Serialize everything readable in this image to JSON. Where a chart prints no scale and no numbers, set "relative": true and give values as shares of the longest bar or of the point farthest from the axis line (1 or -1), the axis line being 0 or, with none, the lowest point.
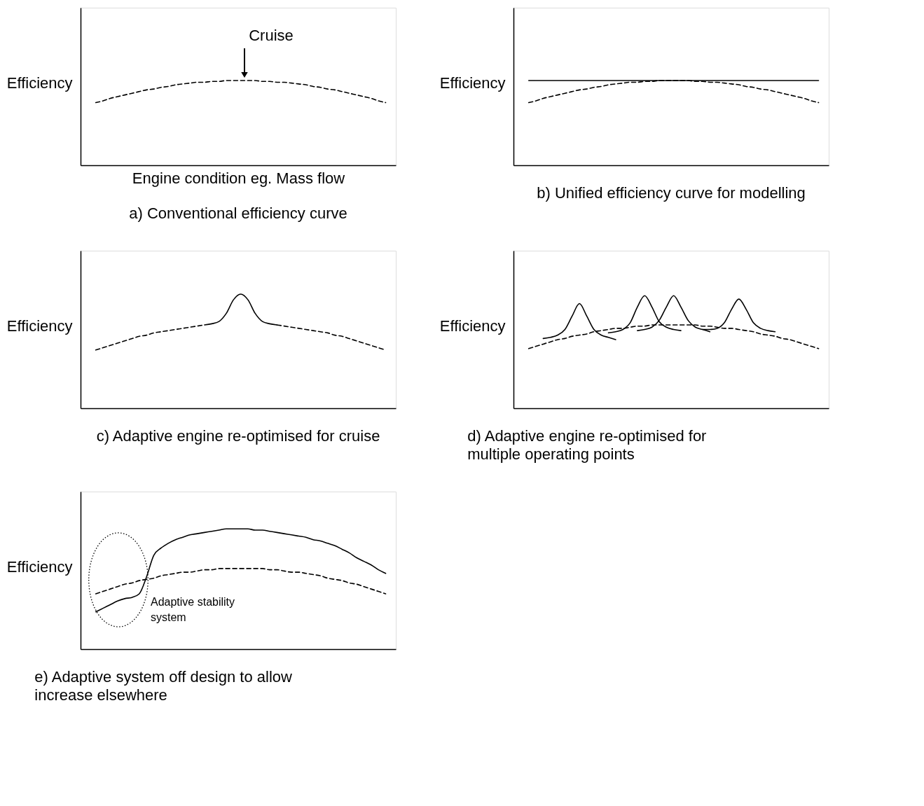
{
  "chart_data": [
    {
      "type": "line",
      "relative": true,
      "tick_labels": false,
      "title": "a) Conventional efficiency curve",
      "xlabel": "Engine condition eg. Mass flow",
      "ylabel": "Efficiency",
      "annotations": [
        "Cruise"
      ],
      "categories": [
        null,
        null,
        null,
        null,
        null,
        null,
        null,
        null,
        null,
        null,
        null,
        null,
        null,
        null,
        null,
        null,
        null,
        null,
        null,
        null,
        null,
        null,
        null,
        null,
        null,
        null,
        null,
        null,
        null,
        null,
        null,
        null,
        null,
        null,
        null,
        null,
        null,
        null,
        null,
        null,
        null
      ],
      "series": [
        {
          "color": "#000000",
          "line_style": "dashed",
          "values": [
            0.74,
            0.76,
            0.79,
            0.81,
            0.83,
            0.85,
            0.87,
            0.89,
            0.9,
            0.92,
            0.93,
            0.95,
            0.96,
            0.97,
            0.98,
            0.98,
            0.99,
            0.99,
            1,
            1,
            1,
            1,
            1,
            0.99,
            0.99,
            0.98,
            0.98,
            0.97,
            0.96,
            0.95,
            0.93,
            0.92,
            0.9,
            0.89,
            0.87,
            0.85,
            0.83,
            0.81,
            0.79,
            0.76,
            0.74
          ]
        }
      ]
    },
    {
      "type": "line",
      "relative": true,
      "tick_labels": false,
      "title": "b) Unified efficiency curve for modelling",
      "ylabel": "Efficiency",
      "categories": [
        null,
        null,
        null,
        null,
        null,
        null,
        null,
        null,
        null,
        null,
        null,
        null,
        null,
        null,
        null,
        null,
        null,
        null,
        null,
        null,
        null,
        null,
        null,
        null,
        null,
        null,
        null,
        null,
        null,
        null,
        null,
        null,
        null,
        null,
        null,
        null,
        null,
        null,
        null,
        null,
        null
      ],
      "series": [
        {
          "color": "#000000",
          "line_style": "dashed",
          "values": [
            0.74,
            0.76,
            0.79,
            0.81,
            0.83,
            0.85,
            0.87,
            0.89,
            0.9,
            0.92,
            0.93,
            0.95,
            0.96,
            0.97,
            0.98,
            0.98,
            0.99,
            0.99,
            1,
            1,
            1,
            1,
            1,
            0.99,
            0.99,
            0.98,
            0.98,
            0.97,
            0.96,
            0.95,
            0.93,
            0.92,
            0.9,
            0.89,
            0.87,
            0.85,
            0.83,
            0.81,
            0.79,
            0.76,
            0.74
          ]
        },
        {
          "color": "#000000",
          "line_style": "solid",
          "values": [
            1,
            1,
            1,
            1,
            1,
            1,
            1,
            1,
            1,
            1,
            1,
            1,
            1,
            1,
            1,
            1,
            1,
            1,
            1,
            1,
            1,
            1,
            1,
            1,
            1,
            1,
            1,
            1,
            1,
            1,
            1,
            1,
            1,
            1,
            1,
            1,
            1,
            1,
            1,
            1,
            1
          ]
        }
      ]
    },
    {
      "type": "line",
      "relative": true,
      "tick_labels": false,
      "title": "c) Adaptive engine re-optimised for cruise",
      "ylabel": "Efficiency",
      "categories": [
        null,
        null,
        null,
        null,
        null,
        null,
        null,
        null,
        null,
        null,
        null,
        null,
        null,
        null,
        null,
        null,
        null,
        null,
        null,
        null,
        null,
        null,
        null,
        null,
        null,
        null,
        null,
        null,
        null,
        null,
        null,
        null,
        null,
        null,
        null,
        null,
        null,
        null,
        null,
        null,
        null
      ],
      "series": [
        {
          "color": "#000000",
          "line_style": "dashed",
          "values": [
            0.51,
            0.53,
            0.55,
            0.57,
            0.59,
            0.61,
            0.63,
            0.64,
            0.66,
            0.67,
            0.68,
            0.69,
            0.7,
            0.71,
            0.72,
            0.73,
            null,
            null,
            null,
            null,
            null,
            null,
            null,
            null,
            null,
            0.73,
            0.72,
            0.71,
            0.7,
            0.69,
            0.68,
            0.67,
            0.66,
            0.64,
            0.63,
            0.61,
            0.59,
            0.57,
            0.55,
            0.53,
            0.51
          ]
        },
        {
          "color": "#000000",
          "line_style": "solid",
          "values": [
            null,
            null,
            null,
            null,
            null,
            null,
            null,
            null,
            null,
            null,
            null,
            null,
            null,
            null,
            null,
            0.73,
            0.74,
            0.76,
            0.83,
            0.95,
            1,
            0.95,
            0.83,
            0.76,
            0.74,
            0.73,
            null,
            null,
            null,
            null,
            null,
            null,
            null,
            null,
            null,
            null,
            null,
            null,
            null,
            null,
            null
          ]
        }
      ]
    },
    {
      "type": "line",
      "relative": true,
      "tick_labels": false,
      "title": "d) Adaptive engine re-optimised for\nmultiple operating  points",
      "ylabel": "Efficiency",
      "categories": [
        null,
        null,
        null,
        null,
        null,
        null,
        null,
        null,
        null,
        null,
        null,
        null,
        null,
        null,
        null,
        null,
        null,
        null,
        null,
        null,
        null,
        null,
        null,
        null,
        null,
        null,
        null,
        null,
        null,
        null,
        null,
        null,
        null,
        null,
        null,
        null,
        null,
        null,
        null,
        null,
        null
      ],
      "series": [
        {
          "color": "#000000",
          "line_style": "dashed",
          "values": [
            0.53,
            0.55,
            0.57,
            0.59,
            0.61,
            0.62,
            0.64,
            0.65,
            0.66,
            0.68,
            0.69,
            0.7,
            0.71,
            0.71,
            0.72,
            0.73,
            0.73,
            0.74,
            0.74,
            0.74,
            0.74,
            0.74,
            0.74,
            0.74,
            0.73,
            0.73,
            0.72,
            0.71,
            0.71,
            0.7,
            0.69,
            0.68,
            0.66,
            0.65,
            0.64,
            0.62,
            0.61,
            0.59,
            0.57,
            0.55,
            0.53
          ]
        },
        {
          "color": "#000000",
          "line_style": "solid",
          "values": [
            null,
            null,
            0.62,
            0.63,
            0.65,
            0.7,
            0.82,
            0.93,
            0.82,
            0.7,
            0.65,
            0.63,
            0.61,
            null,
            null,
            null,
            null,
            null,
            null,
            null,
            null,
            null,
            null,
            null,
            null,
            null,
            null,
            null,
            null,
            null,
            null,
            null,
            null,
            null,
            null,
            null,
            null,
            null,
            null,
            null,
            null
          ]
        },
        {
          "color": "#000000",
          "line_style": "solid",
          "values": [
            null,
            null,
            null,
            null,
            null,
            null,
            null,
            null,
            null,
            null,
            null,
            0.67,
            0.68,
            0.7,
            0.76,
            0.9,
            1,
            0.9,
            0.77,
            0.72,
            0.7,
            0.69,
            null,
            null,
            null,
            null,
            null,
            null,
            null,
            null,
            null,
            null,
            null,
            null,
            null,
            null,
            null,
            null,
            null,
            null,
            null
          ]
        },
        {
          "color": "#000000",
          "line_style": "solid",
          "values": [
            null,
            null,
            null,
            null,
            null,
            null,
            null,
            null,
            null,
            null,
            null,
            null,
            null,
            null,
            null,
            0.69,
            0.7,
            0.72,
            0.78,
            0.9,
            1,
            0.9,
            0.78,
            0.72,
            0.7,
            0.68,
            null,
            null,
            null,
            null,
            null,
            null,
            null,
            null,
            null,
            null,
            null,
            null,
            null,
            null,
            null
          ]
        },
        {
          "color": "#000000",
          "line_style": "solid",
          "values": [
            null,
            null,
            null,
            null,
            null,
            null,
            null,
            null,
            null,
            null,
            null,
            null,
            null,
            null,
            null,
            null,
            null,
            null,
            null,
            null,
            null,
            null,
            null,
            null,
            0.7,
            0.7,
            0.71,
            0.76,
            0.88,
            0.97,
            0.88,
            0.76,
            0.71,
            0.69,
            0.68,
            null,
            null,
            null,
            null,
            null,
            null
          ]
        }
      ]
    },
    {
      "type": "line",
      "relative": true,
      "tick_labels": false,
      "title": "e) Adaptive system off design to allow\nincrease elsewhere",
      "ylabel": "Efficiency",
      "annotations": [
        "Adaptive stability\nsystem"
      ],
      "categories": [
        null,
        null,
        null,
        null,
        null,
        null,
        null,
        null,
        null,
        null,
        null,
        null,
        null,
        null,
        null,
        null,
        null,
        null,
        null,
        null,
        null,
        null,
        null,
        null,
        null,
        null,
        null,
        null,
        null,
        null,
        null,
        null,
        null,
        null,
        null,
        null,
        null,
        null,
        null,
        null,
        null
      ],
      "series": [
        {
          "color": "#000000",
          "line_style": "dashed",
          "values": [
            0.46,
            0.48,
            0.5,
            0.52,
            0.54,
            0.55,
            0.57,
            0.58,
            0.59,
            0.61,
            0.62,
            0.63,
            0.64,
            0.64,
            0.65,
            0.66,
            0.66,
            0.67,
            0.67,
            0.67,
            0.67,
            0.67,
            0.67,
            0.67,
            0.66,
            0.66,
            0.65,
            0.64,
            0.64,
            0.63,
            0.62,
            0.61,
            0.59,
            0.58,
            0.57,
            0.55,
            0.54,
            0.52,
            0.5,
            0.48,
            0.46
          ]
        },
        {
          "color": "#000000",
          "line_style": "solid",
          "values": [
            0.31,
            0.34,
            0.37,
            0.4,
            0.42,
            0.43,
            0.46,
            0.6,
            0.78,
            0.84,
            0.88,
            0.91,
            0.93,
            0.95,
            0.96,
            0.97,
            0.98,
            0.99,
            1,
            1,
            1,
            1,
            0.99,
            0.99,
            0.98,
            0.97,
            0.96,
            0.95,
            0.94,
            0.93,
            0.91,
            0.9,
            0.88,
            0.86,
            0.83,
            0.8,
            0.76,
            0.73,
            0.7,
            0.66,
            0.63
          ]
        }
      ]
    }
  ]
}
